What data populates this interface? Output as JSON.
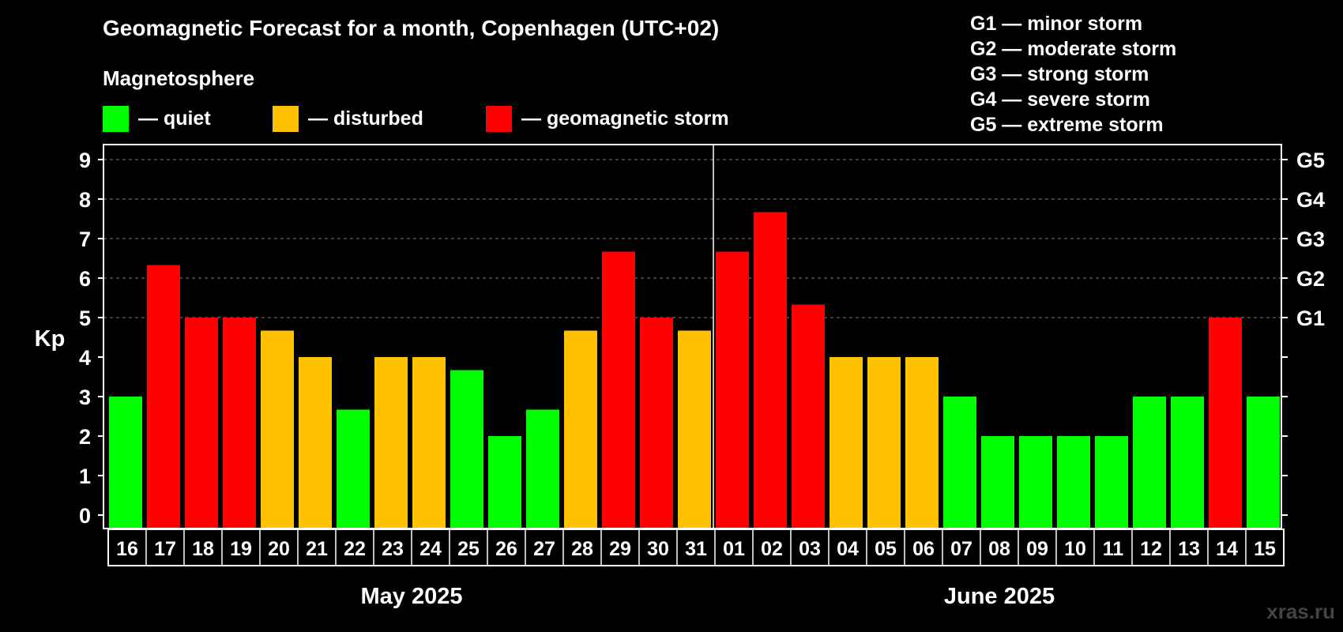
{
  "title": "Geomagnetic Forecast for a month, Copenhagen (UTC+02)",
  "subtitle": "Magnetosphere",
  "legend": [
    {
      "label": "— quiet",
      "color": "#00ff00"
    },
    {
      "label": "— disturbed",
      "color": "#ffc000"
    },
    {
      "label": "— geomagnetic storm",
      "color": "#ff0000"
    }
  ],
  "g_legend": [
    "G1 — minor storm",
    "G2 — moderate storm",
    "G3 — strong storm",
    "G4 — severe storm",
    "G5 — extreme storm"
  ],
  "watermark": "xras.ru",
  "chart_data": {
    "type": "bar",
    "ylabel": "Kp",
    "ylim": [
      0,
      9
    ],
    "yticks": [
      "0",
      "1",
      "2",
      "3",
      "4",
      "5",
      "6",
      "7",
      "8",
      "9"
    ],
    "right_ticks": [
      {
        "value": 5,
        "label": "G1"
      },
      {
        "value": 6,
        "label": "G2"
      },
      {
        "value": 7,
        "label": "G3"
      },
      {
        "value": 8,
        "label": "G4"
      },
      {
        "value": 9,
        "label": "G5"
      }
    ],
    "grid": "dashed at 5-9",
    "categories": [
      "16",
      "17",
      "18",
      "19",
      "20",
      "21",
      "22",
      "23",
      "24",
      "25",
      "26",
      "27",
      "28",
      "29",
      "30",
      "31",
      "01",
      "02",
      "03",
      "04",
      "05",
      "06",
      "07",
      "08",
      "09",
      "10",
      "11",
      "12",
      "13",
      "14",
      "15"
    ],
    "values": [
      3,
      6.33,
      5,
      5,
      4.67,
      4,
      2.67,
      4,
      4,
      3.67,
      2,
      2.67,
      4.67,
      6.67,
      5,
      4.67,
      6.67,
      7.67,
      5.33,
      4,
      4,
      4,
      3,
      2,
      2,
      2,
      2,
      3,
      3,
      5,
      3
    ],
    "levels": [
      "quiet",
      "storm",
      "storm",
      "storm",
      "disturbed",
      "disturbed",
      "quiet",
      "disturbed",
      "disturbed",
      "quiet",
      "quiet",
      "quiet",
      "disturbed",
      "storm",
      "storm",
      "disturbed",
      "storm",
      "storm",
      "storm",
      "disturbed",
      "disturbed",
      "disturbed",
      "quiet",
      "quiet",
      "quiet",
      "quiet",
      "quiet",
      "quiet",
      "quiet",
      "storm",
      "quiet"
    ],
    "level_colors": {
      "quiet": "#00ff00",
      "disturbed": "#ffc000",
      "storm": "#ff0000"
    },
    "months": [
      {
        "label": "May 2025",
        "count": 16
      },
      {
        "label": "June 2025",
        "count": 15
      }
    ]
  }
}
